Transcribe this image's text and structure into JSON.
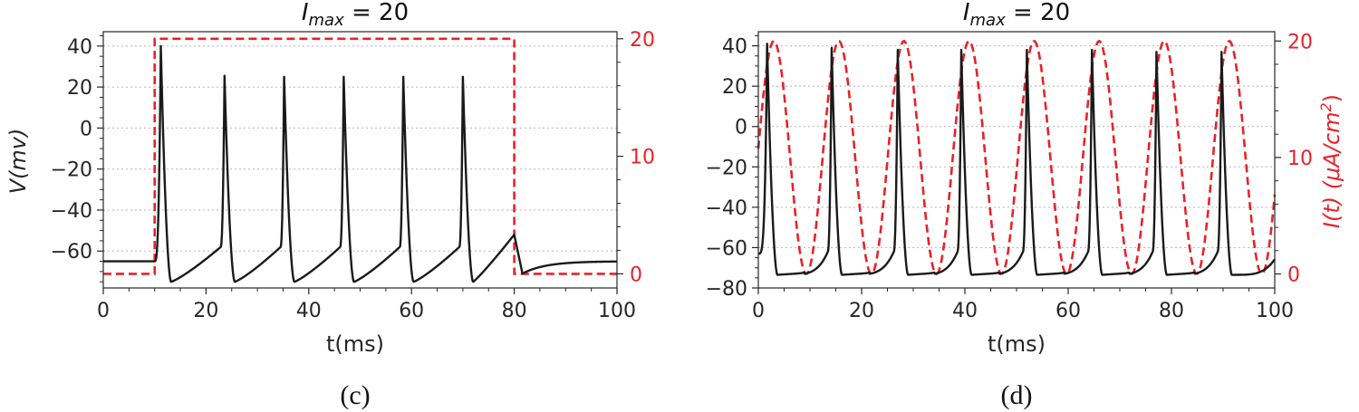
{
  "colors": {
    "voltage": "#1a1a1a",
    "current": "#e8222a",
    "grid": "#b5b5b5",
    "axis": "#262626"
  },
  "chart_data": [
    {
      "type": "line",
      "panel": "c",
      "caption": "(c)",
      "title_base": "I",
      "title_sub": "max",
      "title_rest": " = 20",
      "xlabel": "t(ms)",
      "ylabel": "V(mv)",
      "ylabel_right": "",
      "xlim": [
        0,
        100
      ],
      "ylim": [
        -78,
        47
      ],
      "ylim_right": [
        -1.2,
        20.6
      ],
      "xticks": [
        0,
        20,
        40,
        60,
        80,
        100
      ],
      "yticks": [
        -60,
        -40,
        -20,
        0,
        20,
        40
      ],
      "yticks_right": [
        0,
        10,
        20
      ],
      "grid": "horizontal dotted",
      "current_shape": "step",
      "current_params": {
        "on": 10,
        "off": 80,
        "amplitude": 20
      },
      "spike_times": [
        11.2,
        23.6,
        35.2,
        46.8,
        58.4,
        70.0
      ],
      "spike_peaks": [
        40,
        25.5,
        25,
        25,
        25,
        25
      ],
      "series": [
        {
          "axis": "left",
          "style": "solid",
          "values_summary": "rest -65 mV, spikes after onset at 10 ms"
        },
        {
          "axis": "right",
          "style": "dashed",
          "values_summary": "0 until 10 ms, 20 until 80 ms, then 0"
        }
      ]
    },
    {
      "type": "line",
      "panel": "d",
      "caption": "(d)",
      "title_base": "I",
      "title_sub": "max",
      "title_rest": " = 20",
      "xlabel": "t(ms)",
      "ylabel": "",
      "ylabel_right_pre": "I(t) (",
      "ylabel_right_mu": "μ",
      "ylabel_right_unit": "A/cm",
      "ylabel_right_sup": "2",
      "ylabel_right_post": ")",
      "xlim": [
        0,
        100
      ],
      "ylim": [
        -80,
        47
      ],
      "ylim_right": [
        -1.2,
        20.8
      ],
      "xticks": [
        0,
        20,
        40,
        60,
        80,
        100
      ],
      "yticks": [
        -80,
        -60,
        -40,
        -20,
        0,
        20,
        40
      ],
      "yticks_right": [
        0,
        10,
        20
      ],
      "grid": "horizontal dotted",
      "current_shape": "sine",
      "current_params": {
        "period": 12.6,
        "peak_time": 3.0,
        "amplitude": 20
      },
      "spike_times": [
        1.7,
        14.2,
        27.0,
        39.3,
        52.0,
        64.6,
        77.1,
        89.7
      ],
      "spike_peaks": [
        41,
        39,
        38,
        38,
        38,
        38,
        37,
        37
      ],
      "series": [
        {
          "axis": "left",
          "style": "solid",
          "values_summary": "periodic spikes ~38 mV, troughs ~-73 mV"
        },
        {
          "axis": "right",
          "style": "dashed",
          "values_summary": "10 + 10·sin wave between 0 and 20"
        }
      ]
    }
  ]
}
